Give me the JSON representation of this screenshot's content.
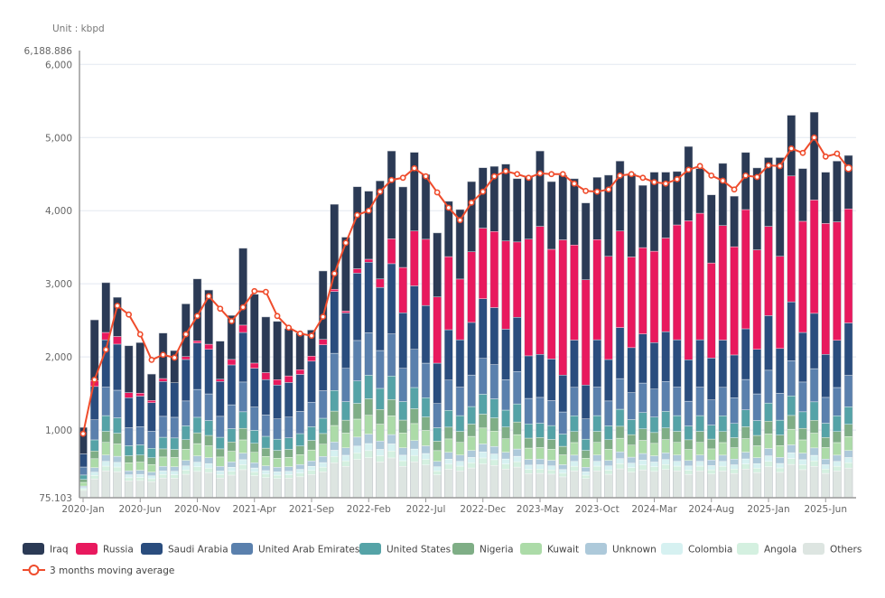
{
  "chart_data": {
    "type": "bar",
    "stacked": true,
    "unit_label": "Unit : kbpd",
    "ylim": [
      75.103,
      6188.886
    ],
    "y_ticks": [
      1000,
      2000,
      3000,
      4000,
      5000,
      6000
    ],
    "y_tick_labels": [
      "75.103",
      "1,000",
      "2,000",
      "3,000",
      "4,000",
      "5,000",
      "6,000",
      "6,188.886"
    ],
    "grid": true,
    "legend_position": "bottom",
    "categories": [
      "2020-Jan",
      "2020-Feb",
      "2020-Mar",
      "2020-Apr",
      "2020-May",
      "2020-Jun",
      "2020-Jul",
      "2020-Aug",
      "2020-Sep",
      "2020-Oct",
      "2020-Nov",
      "2020-Dec",
      "2021-Jan",
      "2021-Feb",
      "2021-Mar",
      "2021-Apr",
      "2021-May",
      "2021-Jun",
      "2021-Jul",
      "2021-Aug",
      "2021-Sep",
      "2021-Oct",
      "2021-Nov",
      "2021-Dec",
      "2022-Jan",
      "2022-Feb",
      "2022-Mar",
      "2022-Apr",
      "2022-May",
      "2022-Jun",
      "2022-Jul",
      "2022-Aug",
      "2022-Sep",
      "2022-Oct",
      "2022-Nov",
      "2022-Dec",
      "2023-Jan",
      "2023-Feb",
      "2023-Mar",
      "2023-Apr",
      "2023-May",
      "2023-Jun",
      "2023-Jul",
      "2023-Aug",
      "2023-Sep",
      "2023-Oct",
      "2023-Nov",
      "2023-Dec",
      "2024-Jan",
      "2024-Feb",
      "2024-Mar",
      "2024-Apr",
      "2024-May",
      "2024-Jun",
      "2024-Jul",
      "2024-Aug",
      "2024-Sep",
      "2024-Oct",
      "2024-Nov",
      "2024-Dec",
      "2025-Jan",
      "2025-Feb",
      "2025-Mar",
      "2025-Apr",
      "2025-May",
      "2025-Jun",
      "2025-Jul",
      "2025-Aug"
    ],
    "x_tick_labels": [
      "2020-Jan",
      "2020-Jun",
      "2020-Nov",
      "2021-Apr",
      "2021-Sep",
      "2022-Feb",
      "2022-Jul",
      "2022-Dec",
      "2023-May",
      "2023-Oct",
      "2024-Mar",
      "2024-Aug",
      "2025-Jan",
      "2025-Jun"
    ],
    "series": [
      {
        "name": "Iraq",
        "color": "#2b3a55",
        "values": [
          360,
          830,
          680,
          535,
          640,
          690,
          360,
          620,
          440,
          720,
          845,
          740,
          520,
          600,
          1050,
          940,
          760,
          795,
          645,
          500,
          355,
          935,
          1160,
          1010,
          1120,
          930,
          1340,
          1200,
          1100,
          1075,
          885,
          875,
          755,
          950,
          960,
          825,
          890,
          1050,
          865,
          865,
          1030,
          925,
          885,
          905,
          1050,
          850,
          1110,
          955,
          1140,
          850,
          1080,
          900,
          730,
          1015,
          610,
          930,
          850,
          690,
          780,
          1120,
          940,
          1350,
          830,
          720,
          1200,
          700,
          830,
          730
        ]
      },
      {
        "name": "Russia",
        "color": "#e8195e",
        "values": [
          0,
          80,
          100,
          105,
          70,
          40,
          30,
          40,
          0,
          40,
          30,
          70,
          30,
          75,
          100,
          70,
          95,
          75,
          90,
          65,
          70,
          75,
          30,
          25,
          60,
          40,
          115,
          340,
          620,
          750,
          905,
          905,
          1000,
          830,
          965,
          965,
          1040,
          1205,
          1030,
          1595,
          1750,
          1500,
          1850,
          1300,
          1440,
          1370,
          1410,
          1320,
          1240,
          1180,
          1250,
          1280,
          1570,
          1900,
          1730,
          1300,
          1565,
          1480,
          1630,
          1360,
          1220,
          1260,
          1720,
          1520,
          1550,
          1790,
          1620,
          1560
        ]
      },
      {
        "name": "Saudi Arabia",
        "color": "#2a4d7e",
        "values": [
          180,
          456,
          648,
          630,
          410,
          417,
          390,
          477,
          471,
          567,
          635,
          609,
          477,
          545,
          678,
          531,
          485,
          462,
          473,
          506,
          560,
          627,
          846,
          758,
          921,
          966,
          863,
          960,
          759,
          869,
          789,
          552,
          689,
          648,
          719,
          816,
          780,
          692,
          740,
          582,
          588,
          569,
          503,
          647,
          462,
          648,
          567,
          698,
          615,
          672,
          636,
          681,
          648,
          566,
          648,
          573,
          647,
          585,
          693,
          609,
          747,
          612,
          804,
          678,
          756,
          588,
          645,
          717
        ]
      },
      {
        "name": "United Arab Emirates",
        "color": "#5a80ad",
        "values": [
          110,
          274,
          389,
          378,
          246,
          250,
          234,
          286,
          283,
          340,
          381,
          365,
          286,
          327,
          407,
          319,
          291,
          277,
          284,
          303,
          336,
          376,
          508,
          455,
          553,
          580,
          518,
          576,
          455,
          521,
          473,
          331,
          413,
          389,
          431,
          490,
          468,
          415,
          444,
          349,
          353,
          341,
          302,
          388,
          277,
          389,
          340,
          419,
          369,
          403,
          382,
          409,
          389,
          339,
          389,
          344,
          388,
          351,
          416,
          365,
          448,
          367,
          482,
          407,
          454,
          353,
          387,
          430
        ]
      },
      {
        "name": "United States",
        "color": "#55a3a7",
        "values": [
          60,
          152,
          216,
          210,
          137,
          139,
          130,
          159,
          157,
          189,
          212,
          203,
          159,
          182,
          226,
          177,
          162,
          154,
          158,
          169,
          187,
          209,
          282,
          253,
          307,
          322,
          288,
          320,
          253,
          290,
          263,
          184,
          230,
          216,
          240,
          272,
          260,
          231,
          247,
          194,
          196,
          190,
          168,
          216,
          154,
          216,
          189,
          233,
          205,
          224,
          212,
          227,
          216,
          189,
          216,
          191,
          216,
          195,
          231,
          203,
          249,
          204,
          268,
          226,
          252,
          196,
          215,
          239
        ]
      },
      {
        "name": "Nigeria",
        "color": "#7fae86",
        "values": [
          40,
          106,
          151,
          147,
          96,
          97,
          91,
          111,
          110,
          132,
          148,
          142,
          111,
          127,
          158,
          124,
          113,
          108,
          110,
          118,
          131,
          146,
          197,
          177,
          215,
          225,
          201,
          224,
          177,
          203,
          184,
          129,
          161,
          151,
          168,
          190,
          182,
          161,
          173,
          136,
          137,
          133,
          117,
          151,
          108,
          151,
          132,
          163,
          144,
          157,
          148,
          159,
          151,
          132,
          151,
          134,
          151,
          137,
          162,
          142,
          174,
          143,
          188,
          158,
          176,
          137,
          151,
          167
        ]
      },
      {
        "name": "Kuwait",
        "color": "#acdba8",
        "values": [
          50,
          122,
          173,
          168,
          109,
          111,
          104,
          127,
          126,
          151,
          169,
          162,
          127,
          145,
          181,
          142,
          129,
          123,
          126,
          135,
          149,
          167,
          226,
          202,
          246,
          258,
          230,
          256,
          202,
          232,
          210,
          147,
          184,
          173,
          192,
          218,
          208,
          184,
          197,
          155,
          157,
          152,
          134,
          172,
          123,
          173,
          151,
          186,
          164,
          179,
          170,
          182,
          173,
          151,
          173,
          153,
          172,
          156,
          185,
          162,
          199,
          163,
          214,
          181,
          202,
          157,
          172,
          191
        ]
      },
      {
        "name": "Unknown",
        "color": "#adc9da",
        "values": [
          20,
          61,
          86,
          84,
          55,
          56,
          52,
          64,
          63,
          76,
          85,
          81,
          64,
          73,
          90,
          71,
          65,
          62,
          63,
          67,
          75,
          84,
          113,
          101,
          123,
          129,
          115,
          128,
          101,
          116,
          105,
          74,
          92,
          86,
          96,
          109,
          104,
          92,
          99,
          78,
          78,
          76,
          67,
          86,
          62,
          86,
          76,
          93,
          82,
          90,
          85,
          91,
          86,
          75,
          86,
          76,
          86,
          78,
          92,
          81,
          100,
          82,
          107,
          90,
          101,
          78,
          86,
          96
        ]
      },
      {
        "name": "Colombia",
        "color": "#d6f1f1",
        "values": [
          20,
          46,
          65,
          63,
          41,
          42,
          39,
          48,
          47,
          57,
          63,
          61,
          48,
          54,
          68,
          53,
          48,
          46,
          47,
          51,
          56,
          63,
          85,
          76,
          92,
          97,
          86,
          96,
          76,
          87,
          79,
          55,
          69,
          65,
          72,
          82,
          78,
          69,
          74,
          58,
          59,
          57,
          50,
          65,
          46,
          65,
          57,
          70,
          62,
          67,
          64,
          68,
          65,
          57,
          65,
          57,
          65,
          59,
          69,
          61,
          75,
          61,
          80,
          68,
          76,
          59,
          65,
          72
        ]
      },
      {
        "name": "Angola",
        "color": "#d4f0e0",
        "values": [
          20,
          46,
          65,
          63,
          41,
          42,
          39,
          48,
          47,
          57,
          63,
          61,
          48,
          54,
          68,
          53,
          48,
          46,
          47,
          51,
          56,
          63,
          85,
          76,
          92,
          97,
          86,
          96,
          76,
          87,
          79,
          55,
          69,
          65,
          72,
          82,
          78,
          69,
          74,
          58,
          59,
          57,
          50,
          65,
          46,
          65,
          57,
          70,
          62,
          67,
          64,
          68,
          65,
          57,
          65,
          57,
          65,
          59,
          69,
          61,
          75,
          61,
          80,
          68,
          76,
          59,
          65,
          72
        ]
      },
      {
        "name": "Others",
        "color": "#dde5e1",
        "values": [
          100,
          258,
          367,
          357,
          232,
          236,
          221,
          270,
          267,
          321,
          360,
          345,
          270,
          309,
          384,
          301,
          275,
          262,
          268,
          286,
          317,
          355,
          479,
          429,
          522,
          547,
          489,
          544,
          430,
          492,
          447,
          313,
          390,
          367,
          407,
          462,
          442,
          392,
          419,
          330,
          333,
          322,
          285,
          366,
          262,
          367,
          321,
          395,
          349,
          381,
          360,
          386,
          367,
          320,
          367,
          325,
          366,
          332,
          393,
          345,
          423,
          347,
          456,
          384,
          428,
          333,
          366,
          406
        ]
      }
    ],
    "line_series": {
      "name": "3 months moving average",
      "color": "#ef4c2c",
      "values": [
        950,
        1690,
        2100,
        2700,
        2580,
        2310,
        1960,
        2030,
        1990,
        2310,
        2560,
        2830,
        2660,
        2490,
        2680,
        2900,
        2890,
        2560,
        2400,
        2320,
        2290,
        2550,
        3140,
        3560,
        3940,
        4000,
        4260,
        4420,
        4450,
        4580,
        4470,
        4250,
        4040,
        3870,
        4110,
        4260,
        4470,
        4540,
        4500,
        4450,
        4510,
        4500,
        4500,
        4370,
        4270,
        4260,
        4290,
        4480,
        4500,
        4450,
        4390,
        4370,
        4430,
        4560,
        4610,
        4480,
        4410,
        4290,
        4480,
        4460,
        4620,
        4610,
        4850,
        4790,
        5000,
        4740,
        4780,
        4580
      ]
    }
  }
}
